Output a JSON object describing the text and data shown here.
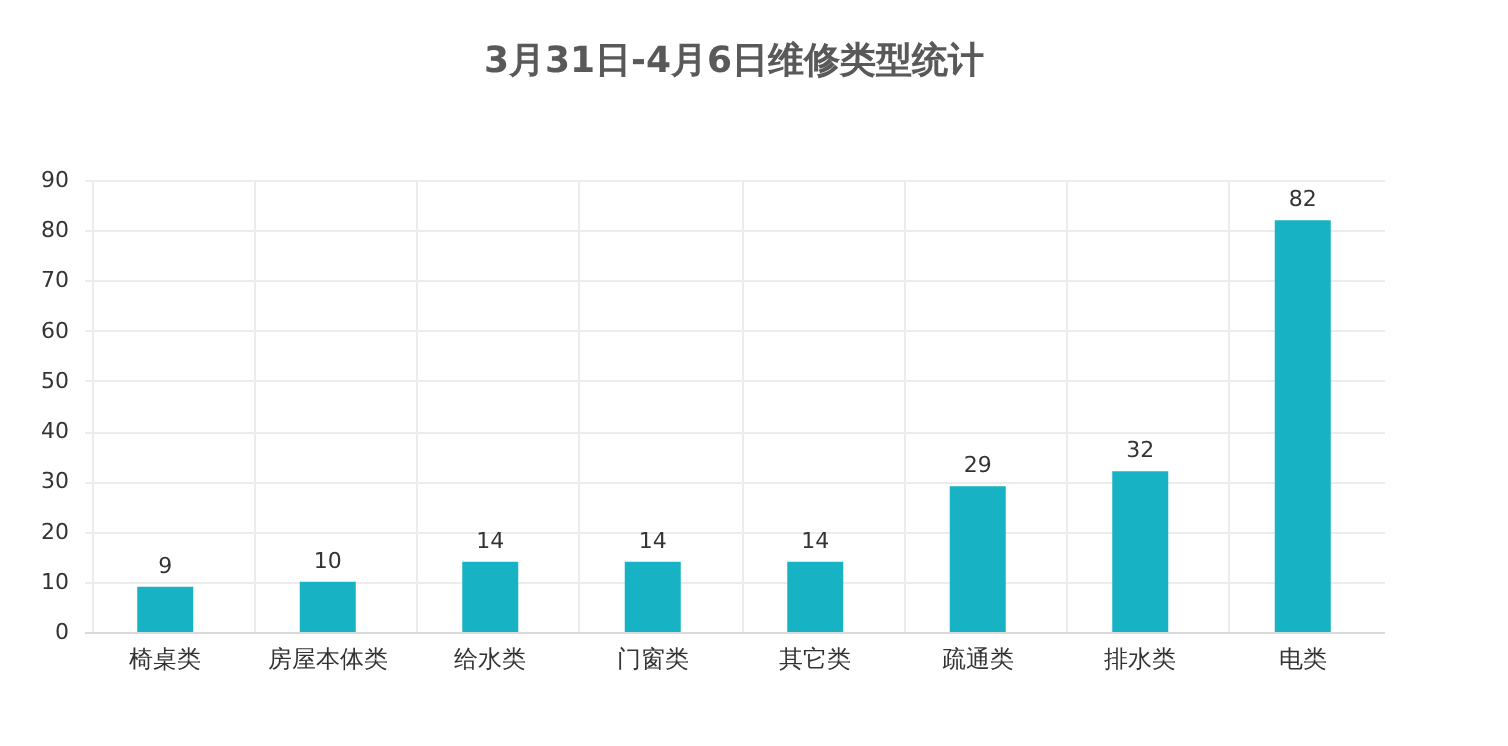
{
  "chart_data": {
    "type": "bar",
    "title": "3月31日-4月6日维修类型统计",
    "categories": [
      "椅桌类",
      "房屋本体类",
      "给水类",
      "门窗类",
      "其它类",
      "疏通类",
      "排水类",
      "电类"
    ],
    "values": [
      9,
      10,
      14,
      14,
      14,
      29,
      32,
      82
    ],
    "color": "#17b3c5",
    "ylim": [
      0,
      90
    ],
    "yticks": [
      0,
      10,
      20,
      30,
      40,
      50,
      60,
      70,
      80,
      90
    ],
    "grid": true,
    "data_labels": true
  }
}
